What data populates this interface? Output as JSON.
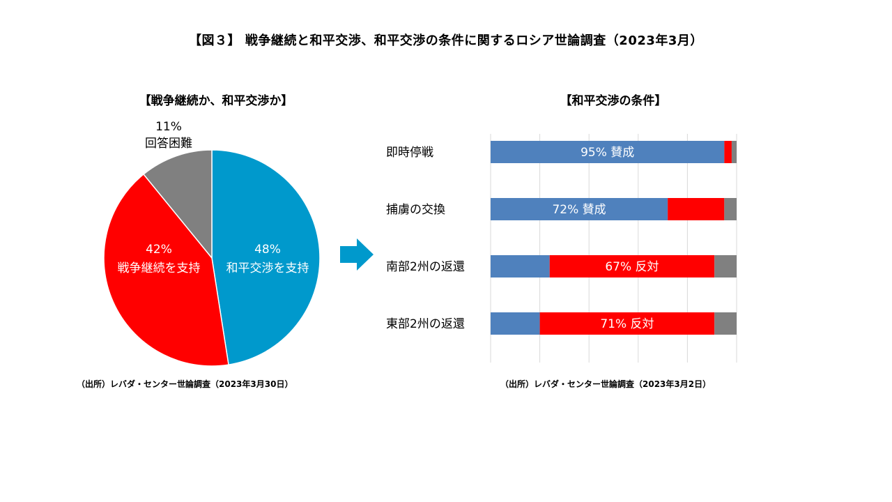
{
  "title": "【図３】 戦争継続と和平交渉、和平交渉の条件に関するロシア世論調査（2023年3月）",
  "colors": {
    "blue_pie": "#0099CC",
    "blue_bar": "#4F81BD",
    "red": "#FF0000",
    "gray": "#808080",
    "arrow": "#0099CC"
  },
  "chart_data": [
    {
      "type": "pie",
      "title": "【戦争継続か、和平交渉か】",
      "slices": [
        {
          "label": "和平交渉を支持",
          "value": 48,
          "value_label": "48%",
          "color": "#0099CC"
        },
        {
          "label": "戦争継続を支持",
          "value": 42,
          "value_label": "42%",
          "color": "#FF0000"
        },
        {
          "label": "回答困難",
          "value": 11,
          "value_label": "11%",
          "color": "#808080"
        }
      ],
      "source": "（出所）レバダ・センター世論調査（2023年3月30日）"
    },
    {
      "type": "bar",
      "orientation": "horizontal",
      "stacked": true,
      "title": "【和平交渉の条件】",
      "xlim": [
        0,
        100
      ],
      "grid": true,
      "categories": [
        "即時停戦",
        "捕虜の交換",
        "南部2州の返還",
        "東部2州の返還"
      ],
      "series": [
        {
          "color": "#4F81BD",
          "values": [
            95,
            72,
            24,
            20
          ]
        },
        {
          "color": "#FF0000",
          "values": [
            3,
            23,
            67,
            71
          ]
        },
        {
          "color": "#808080",
          "values": [
            2,
            5,
            9,
            9
          ]
        }
      ],
      "data_labels": [
        {
          "text": "95% 賛成",
          "series_index": 0
        },
        {
          "text": "72% 賛成",
          "series_index": 0
        },
        {
          "text": "67% 反対",
          "series_index": 1
        },
        {
          "text": "71% 反対",
          "series_index": 1
        }
      ],
      "source": "（出所）レバダ・センター世論調査（2023年3月2日）"
    }
  ]
}
